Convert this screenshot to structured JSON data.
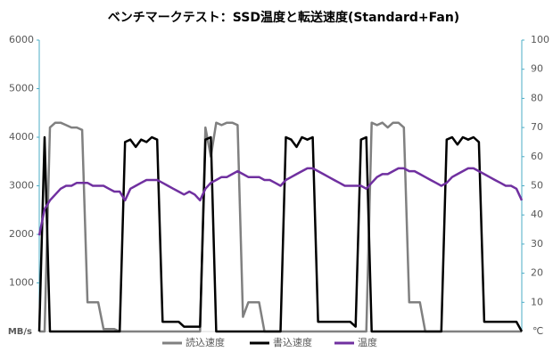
{
  "chart_data": {
    "type": "line",
    "title": "ベンチマークテスト：SSD温度と転送速度(Standard+Fan)",
    "y_label": "MB/s",
    "y2_label": "℃",
    "ylim": [
      0,
      6000
    ],
    "yticks": [
      1000,
      2000,
      3000,
      4000,
      5000,
      6000
    ],
    "y2lim": [
      0,
      100
    ],
    "y2ticks": [
      10,
      20,
      30,
      40,
      50,
      60,
      70,
      80,
      90,
      100
    ],
    "axis_color": "#4bacc6",
    "series": [
      {
        "name": "読込速度",
        "color": "#808080",
        "values": [
          0,
          0,
          4200,
          4300,
          4300,
          4250,
          4200,
          4200,
          4150,
          600,
          600,
          600,
          50,
          50,
          50,
          0,
          0,
          0,
          0,
          0,
          0,
          0,
          0,
          0,
          0,
          0,
          0,
          0,
          0,
          0,
          0,
          4200,
          3600,
          4300,
          4250,
          4300,
          4300,
          4250,
          300,
          600,
          600,
          600,
          0,
          0,
          0,
          0,
          0,
          0,
          0,
          0,
          0,
          0,
          0,
          0,
          0,
          0,
          0,
          0,
          0,
          0,
          0,
          0,
          4300,
          4250,
          4300,
          4200,
          4300,
          4300,
          4200,
          600,
          600,
          600,
          0,
          0,
          0,
          0,
          0,
          0,
          0,
          0,
          0,
          0,
          0,
          0,
          0,
          0,
          0,
          0,
          0,
          0,
          0
        ]
      },
      {
        "name": "書込速度",
        "color": "#000000",
        "values": [
          0,
          4000,
          0,
          0,
          0,
          0,
          0,
          0,
          0,
          0,
          0,
          0,
          0,
          0,
          0,
          0,
          3900,
          3950,
          3800,
          3950,
          3900,
          4000,
          3950,
          200,
          200,
          200,
          200,
          100,
          100,
          100,
          100,
          3950,
          4000,
          0,
          0,
          0,
          0,
          0,
          0,
          0,
          0,
          0,
          0,
          0,
          0,
          0,
          4000,
          3950,
          3800,
          4000,
          3950,
          4000,
          200,
          200,
          200,
          200,
          200,
          200,
          200,
          100,
          3950,
          4000,
          0,
          0,
          0,
          0,
          0,
          0,
          0,
          0,
          0,
          0,
          0,
          0,
          0,
          0,
          3950,
          4000,
          3850,
          4000,
          3950,
          4000,
          3900,
          200,
          200,
          200,
          200,
          200,
          200,
          200,
          0
        ]
      },
      {
        "name": "温度",
        "color": "#7030a0",
        "axis": "y2",
        "values": [
          33,
          42,
          45,
          47,
          49,
          50,
          50,
          51,
          51,
          51,
          50,
          50,
          50,
          49,
          48,
          48,
          45,
          49,
          50,
          51,
          52,
          52,
          52,
          51,
          50,
          49,
          48,
          47,
          48,
          47,
          45,
          49,
          51,
          52,
          53,
          53,
          54,
          55,
          54,
          53,
          53,
          53,
          52,
          52,
          51,
          50,
          52,
          53,
          54,
          55,
          56,
          56,
          55,
          54,
          53,
          52,
          51,
          50,
          50,
          50,
          50,
          49,
          51,
          53,
          54,
          54,
          55,
          56,
          56,
          55,
          55,
          54,
          53,
          52,
          51,
          50,
          51,
          53,
          54,
          55,
          56,
          56,
          55,
          54,
          53,
          52,
          51,
          50,
          50,
          49,
          45
        ]
      }
    ]
  }
}
